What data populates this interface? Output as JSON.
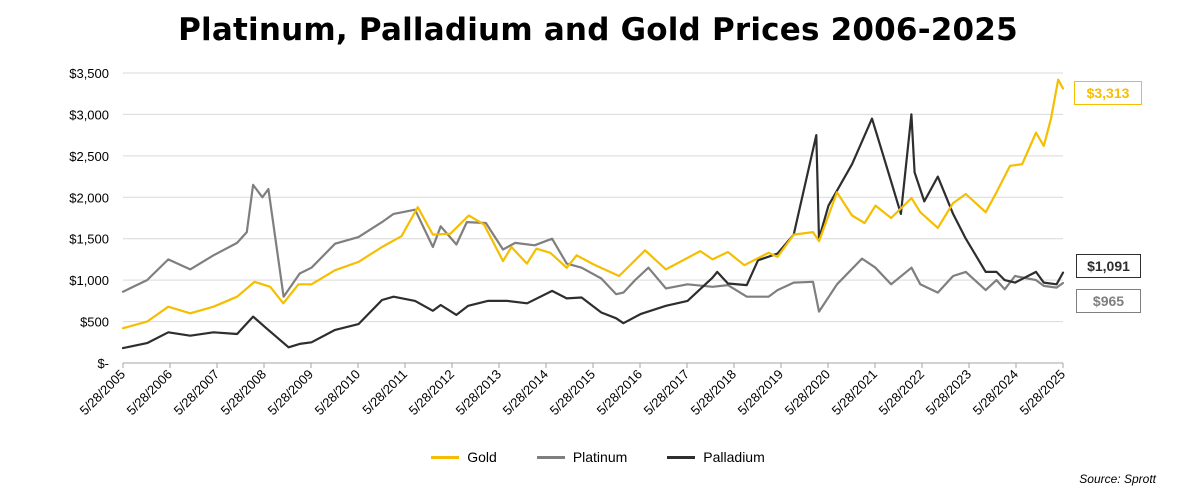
{
  "title": "Platinum, Palladium and Gold Prices 2006-2025",
  "source": "Source: Sprott",
  "colors": {
    "gold": "#F5BE00",
    "platinum": "#7F7F7F",
    "palladium": "#2E2E2E",
    "grid": "#D9D9D9"
  },
  "callouts": [
    {
      "label": "$3,313",
      "series": "Gold",
      "color": "#F5BE00"
    },
    {
      "label": "$1,091",
      "series": "Palladium",
      "color": "#2E2E2E"
    },
    {
      "label": "$965",
      "series": "Platinum",
      "color": "#7F7F7F"
    }
  ],
  "chart_data": {
    "type": "line",
    "title": "Platinum, Palladium and Gold Prices 2006-2025",
    "xlabel": "",
    "ylabel": "",
    "ylim": [
      0,
      3500
    ],
    "xlim": [
      "2005-05-28",
      "2025-05-28"
    ],
    "yticks": [
      0,
      500,
      1000,
      1500,
      2000,
      2500,
      3000,
      3500
    ],
    "ytick_labels": [
      "$-",
      "$500",
      "$1,000",
      "$1,500",
      "$2,000",
      "$2,500",
      "$3,000",
      "$3,500"
    ],
    "xtick_labels": [
      "5/28/2005",
      "5/28/2006",
      "5/28/2007",
      "5/28/2008",
      "5/28/2009",
      "5/28/2010",
      "5/28/2011",
      "5/28/2012",
      "5/28/2013",
      "5/28/2014",
      "5/28/2015",
      "5/28/2016",
      "5/28/2017",
      "5/28/2018",
      "5/28/2019",
      "5/28/2020",
      "5/28/2021",
      "5/28/2022",
      "5/28/2023",
      "5/28/2024",
      "5/28/2025"
    ],
    "grid": "horizontal",
    "legend_position": "bottom",
    "series": [
      {
        "name": "Gold",
        "color": "#F5BE00",
        "x": [
          "2005-05-28",
          "2005-12-01",
          "2006-05-15",
          "2006-11-01",
          "2007-05-01",
          "2007-11-01",
          "2008-03-15",
          "2008-07-15",
          "2008-10-25",
          "2009-02-20",
          "2009-06-01",
          "2009-12-01",
          "2010-06-01",
          "2010-12-01",
          "2011-05-01",
          "2011-09-05",
          "2011-12-31",
          "2012-05-15",
          "2012-10-05",
          "2013-02-01",
          "2013-06-28",
          "2013-09-01",
          "2013-12-31",
          "2014-03-15",
          "2014-07-01",
          "2014-11-05",
          "2015-01-22",
          "2015-06-01",
          "2015-12-17",
          "2016-07-06",
          "2016-12-15",
          "2017-09-08",
          "2017-12-12",
          "2018-04-11",
          "2018-08-16",
          "2019-02-20",
          "2019-05-01",
          "2019-09-04",
          "2020-02-01",
          "2020-03-19",
          "2020-08-06",
          "2020-11-30",
          "2021-03-08",
          "2021-06-01",
          "2021-09-30",
          "2022-03-08",
          "2022-05-15",
          "2022-09-28",
          "2023-01-25",
          "2023-05-04",
          "2023-10-05",
          "2023-12-28",
          "2024-04-12",
          "2024-07-15",
          "2024-10-30",
          "2024-12-30",
          "2025-02-24",
          "2025-04-21",
          "2025-05-28"
        ],
        "values": [
          420,
          500,
          680,
          600,
          680,
          800,
          980,
          920,
          720,
          950,
          950,
          1120,
          1220,
          1400,
          1530,
          1880,
          1550,
          1560,
          1780,
          1670,
          1230,
          1400,
          1200,
          1380,
          1330,
          1150,
          1300,
          1190,
          1050,
          1360,
          1130,
          1350,
          1250,
          1340,
          1180,
          1330,
          1280,
          1550,
          1580,
          1470,
          2060,
          1780,
          1690,
          1900,
          1750,
          1990,
          1820,
          1630,
          1930,
          2040,
          1820,
          2060,
          2380,
          2400,
          2780,
          2620,
          2950,
          3420,
          3313
        ]
      },
      {
        "name": "Platinum",
        "color": "#7F7F7F",
        "x": [
          "2005-05-28",
          "2005-12-01",
          "2006-05-15",
          "2006-11-01",
          "2007-05-01",
          "2007-11-01",
          "2008-01-15",
          "2008-03-04",
          "2008-05-15",
          "2008-07-01",
          "2008-10-27",
          "2009-03-01",
          "2009-06-01",
          "2009-12-01",
          "2010-06-01",
          "2010-12-01",
          "2011-03-01",
          "2011-08-15",
          "2011-12-31",
          "2012-03-01",
          "2012-07-01",
          "2012-09-20",
          "2013-02-15",
          "2013-06-28",
          "2013-10-01",
          "2014-03-01",
          "2014-07-15",
          "2014-11-05",
          "2015-03-01",
          "2015-08-01",
          "2015-11-25",
          "2016-01-20",
          "2016-04-20",
          "2016-08-01",
          "2016-12-15",
          "2017-06-01",
          "2017-12-12",
          "2018-04-11",
          "2018-09-05",
          "2019-02-20",
          "2019-05-01",
          "2019-09-04",
          "2020-02-01",
          "2020-03-19",
          "2020-08-06",
          "2021-02-16",
          "2021-06-01",
          "2021-09-30",
          "2022-03-08",
          "2022-05-15",
          "2022-09-28",
          "2023-01-25",
          "2023-05-04",
          "2023-10-05",
          "2023-12-28",
          "2024-03-01",
          "2024-05-20",
          "2024-10-30",
          "2024-12-30",
          "2025-04-08",
          "2025-05-28"
        ],
        "values": [
          860,
          1000,
          1250,
          1130,
          1300,
          1450,
          1580,
          2150,
          2000,
          2100,
          800,
          1080,
          1150,
          1440,
          1520,
          1700,
          1800,
          1850,
          1400,
          1650,
          1430,
          1700,
          1690,
          1370,
          1450,
          1420,
          1500,
          1200,
          1150,
          1020,
          830,
          850,
          1000,
          1150,
          900,
          950,
          920,
          940,
          800,
          800,
          880,
          970,
          980,
          620,
          950,
          1260,
          1150,
          950,
          1150,
          950,
          850,
          1050,
          1100,
          880,
          1000,
          890,
          1050,
          1000,
          930,
          910,
          965
        ]
      },
      {
        "name": "Palladium",
        "color": "#2E2E2E",
        "x": [
          "2005-05-28",
          "2005-12-01",
          "2006-05-15",
          "2006-11-01",
          "2007-05-01",
          "2007-11-01",
          "2008-03-04",
          "2008-06-15",
          "2008-12-05",
          "2009-03-01",
          "2009-06-01",
          "2009-12-01",
          "2010-06-01",
          "2010-12-01",
          "2011-03-01",
          "2011-08-15",
          "2011-12-31",
          "2012-03-01",
          "2012-07-01",
          "2012-10-01",
          "2013-03-01",
          "2013-08-01",
          "2014-01-01",
          "2014-07-15",
          "2014-11-05",
          "2015-03-01",
          "2015-08-01",
          "2015-11-25",
          "2016-01-20",
          "2016-06-01",
          "2016-12-15",
          "2017-06-01",
          "2017-12-12",
          "2018-01-18",
          "2018-04-11",
          "2018-09-05",
          "2018-12-01",
          "2019-05-01",
          "2019-09-04",
          "2020-02-27",
          "2020-03-19",
          "2020-06-01",
          "2020-12-01",
          "2021-05-05",
          "2021-08-01",
          "2021-12-15",
          "2022-03-07",
          "2022-04-01",
          "2022-06-15",
          "2022-09-28",
          "2023-01-25",
          "2023-05-04",
          "2023-10-05",
          "2023-12-28",
          "2024-03-01",
          "2024-05-20",
          "2024-10-30",
          "2024-12-30",
          "2025-04-08",
          "2025-05-28"
        ],
        "values": [
          180,
          240,
          370,
          330,
          370,
          350,
          560,
          420,
          190,
          230,
          250,
          400,
          470,
          760,
          800,
          750,
          630,
          700,
          580,
          690,
          750,
          750,
          720,
          870,
          780,
          790,
          610,
          540,
          480,
          590,
          690,
          750,
          1030,
          1100,
          960,
          940,
          1240,
          1320,
          1550,
          2750,
          1500,
          1900,
          2400,
          2950,
          2500,
          1800,
          3000,
          2300,
          1950,
          2250,
          1800,
          1500,
          1100,
          1100,
          1000,
          970,
          1100,
          970,
          950,
          1091
        ]
      }
    ]
  }
}
